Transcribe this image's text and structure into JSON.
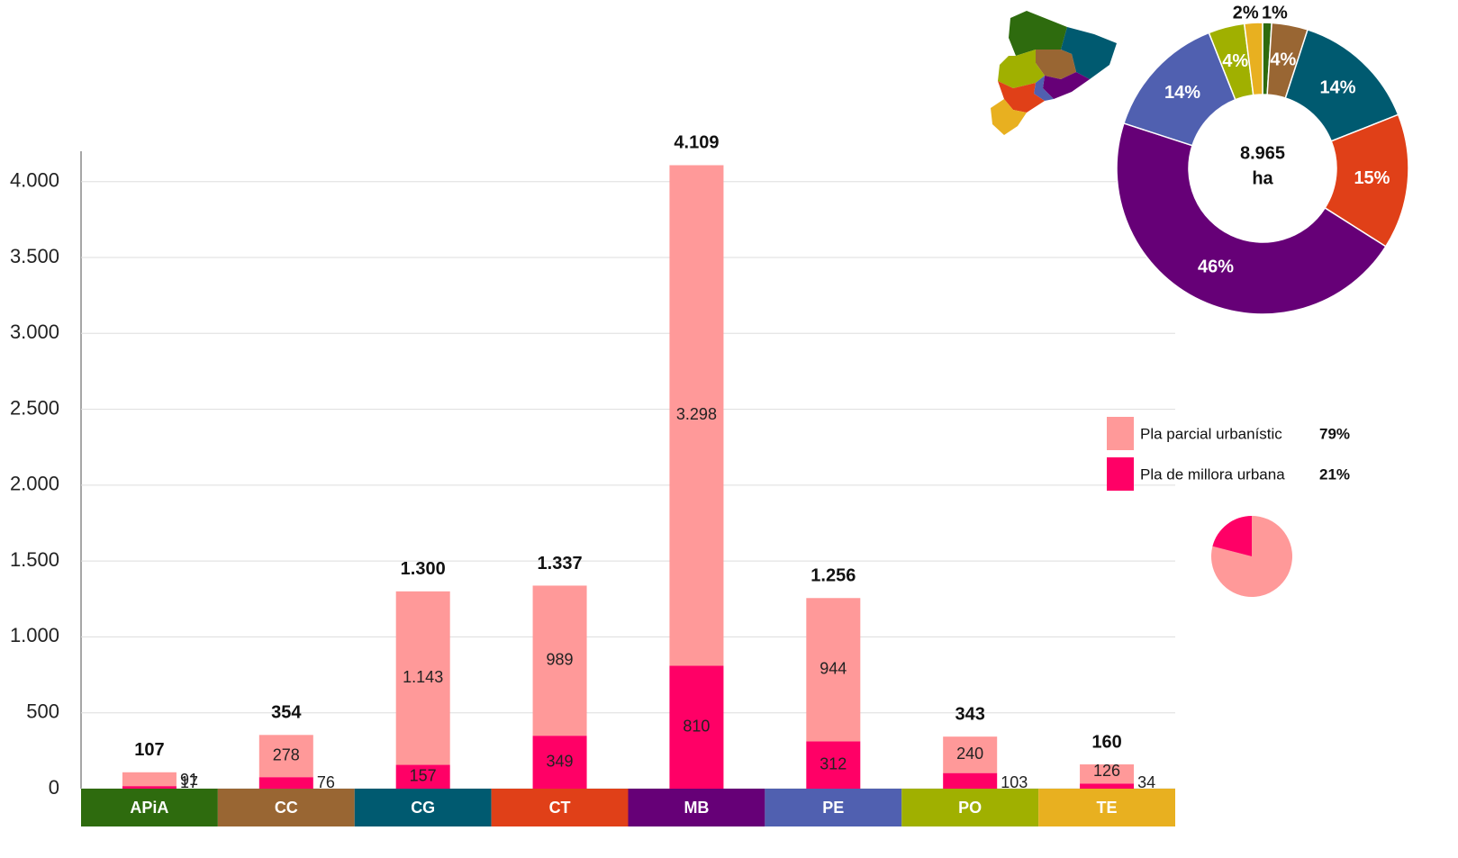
{
  "chart_data": [
    {
      "type": "bar",
      "categories": [
        "APiA",
        "CC",
        "CG",
        "CT",
        "MB",
        "PE",
        "PO",
        "TE"
      ],
      "category_colors": [
        "#2e6b0e",
        "#996633",
        "#005a70",
        "#e04018",
        "#660077",
        "#5060b0",
        "#a0b000",
        "#e8b020"
      ],
      "series": [
        {
          "name": "Pla parcial urbanístic",
          "color": "#ff9999",
          "values": [
            91,
            278,
            1143,
            989,
            3298,
            944,
            240,
            126
          ],
          "value_labels": [
            "91",
            "278",
            "1.143",
            "989",
            "3.298",
            "944",
            "240",
            "126"
          ]
        },
        {
          "name": "Pla de millora urbana",
          "color": "#ff0066",
          "values": [
            17,
            76,
            157,
            349,
            810,
            312,
            103,
            34
          ]
        }
      ],
      "totals": [
        107,
        354,
        1300,
        1337,
        4109,
        1256,
        343,
        160
      ],
      "total_labels": [
        "107",
        "354",
        "1.300",
        "1.337",
        "4.109",
        "1.256",
        "343",
        "160"
      ],
      "ylim": [
        0,
        4200
      ],
      "yticks": [
        0,
        500,
        {
          "value": 1000,
          "label": "1.000"
        },
        {
          "value": 1500,
          "label": "1.500"
        },
        {
          "value": 2000,
          "label": "2.000"
        },
        {
          "value": 2500,
          "label": "2.500"
        },
        {
          "value": 3000,
          "label": "3.000"
        },
        {
          "value": 3500,
          "label": "3.500"
        },
        {
          "value": 4000,
          "label": "4.000"
        }
      ],
      "grid": true
    },
    {
      "type": "donut",
      "values": [
        1,
        4,
        14,
        15,
        46,
        14,
        4,
        2
      ],
      "value_labels": [
        "1%",
        "4%",
        "14%",
        "15%",
        "46%",
        "14%",
        "4%",
        "2%"
      ],
      "colors": [
        "#2e6b0e",
        "#996633",
        "#005a70",
        "#e04018",
        "#660077",
        "#5060b0",
        "#a0b000",
        "#e8b020"
      ],
      "center_label": [
        "8.965",
        "ha"
      ]
    },
    {
      "type": "pie",
      "values": [
        79,
        21
      ],
      "value_labels": [
        "79%",
        "21%"
      ],
      "colors": [
        "#ff9999",
        "#ff0066"
      ]
    }
  ]
}
